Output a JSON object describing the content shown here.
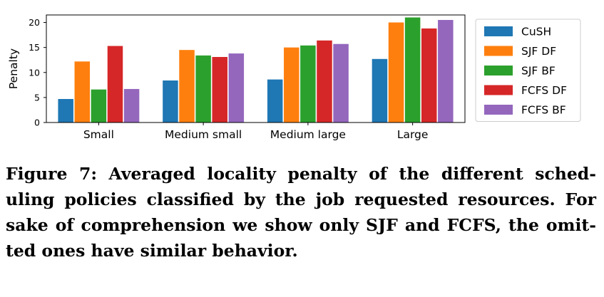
{
  "figure": {
    "caption_lines": [
      "Figure 7: Averaged locality penalty of the different sched-",
      "uling policies classified by the job requested resources. For",
      "sake of comprehension we show only SJF and FCFS, the omit-",
      "ted ones have similar behavior."
    ]
  },
  "chart_data": {
    "type": "bar",
    "title": "",
    "xlabel": "",
    "ylabel": "Penalty",
    "ylim": [
      0,
      21.5
    ],
    "yticks": [
      0,
      5,
      10,
      15,
      20
    ],
    "categories": [
      "Small",
      "Medium small",
      "Medium large",
      "Large"
    ],
    "legend_position": "right",
    "grid": false,
    "series": [
      {
        "name": "CuSH",
        "color": "#1f77b4",
        "values": [
          4.7,
          8.4,
          8.6,
          12.7
        ]
      },
      {
        "name": "SJF DF",
        "color": "#ff7f0e",
        "values": [
          12.2,
          14.5,
          15.0,
          20.0
        ]
      },
      {
        "name": "SJF BF",
        "color": "#2ca02c",
        "values": [
          6.6,
          13.4,
          15.4,
          21.0
        ]
      },
      {
        "name": "FCFS DF",
        "color": "#d62728",
        "values": [
          15.3,
          13.1,
          16.4,
          18.8
        ]
      },
      {
        "name": "FCFS BF",
        "color": "#9467bd",
        "values": [
          6.7,
          13.8,
          15.7,
          20.5
        ]
      }
    ]
  }
}
